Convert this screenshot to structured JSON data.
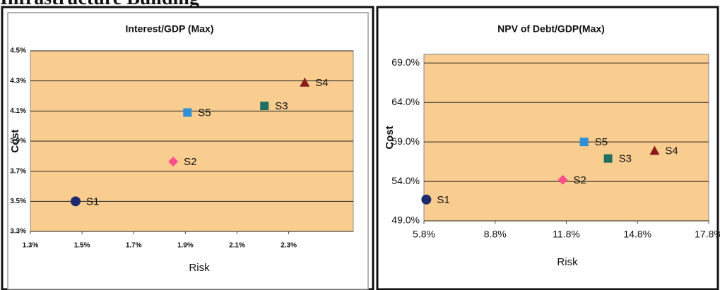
{
  "heading": "Infrastructure Building",
  "chart_data": [
    {
      "type": "scatter",
      "title": "Interest/GDP (Max)",
      "x_label": "Risk",
      "y_label": "Cost",
      "xlim": [
        1.3,
        2.55
      ],
      "ylim": [
        3.3,
        4.5
      ],
      "grid": true,
      "xticks": [
        {
          "value": 1.3,
          "label": "1.3%"
        },
        {
          "value": 1.5,
          "label": "1.5%"
        },
        {
          "value": 1.7,
          "label": "1.7%"
        },
        {
          "value": 1.9,
          "label": "1.9%"
        },
        {
          "value": 2.1,
          "label": "2.1%"
        },
        {
          "value": 2.3,
          "label": "2.3%"
        }
      ],
      "yticks": [
        {
          "value": 3.3,
          "label": "3.3%"
        },
        {
          "value": 3.5,
          "label": "3.5%"
        },
        {
          "value": 3.7,
          "label": "3.7%"
        },
        {
          "value": 3.9,
          "label": "3.9%"
        },
        {
          "value": 4.1,
          "label": "4.1%"
        },
        {
          "value": 4.3,
          "label": "4.3%"
        },
        {
          "value": 4.5,
          "label": "4.5%"
        }
      ],
      "series": [
        {
          "name": "S1",
          "color": "#1f2a6e",
          "marker": "circle",
          "x": [
            1.475
          ],
          "values": [
            3.5
          ]
        },
        {
          "name": "S2",
          "color": "#ff4f8b",
          "marker": "diamond",
          "x": [
            1.853
          ],
          "values": [
            3.764
          ]
        },
        {
          "name": "S5",
          "color": "#2f8fd8",
          "marker": "square",
          "x": [
            1.908
          ],
          "values": [
            4.09
          ]
        },
        {
          "name": "S3",
          "color": "#1f6f62",
          "marker": "square",
          "x": [
            2.206
          ],
          "values": [
            4.134
          ]
        },
        {
          "name": "S4",
          "color": "#8b1a1a",
          "marker": "triangle",
          "x": [
            2.362
          ],
          "values": [
            4.29
          ]
        }
      ]
    },
    {
      "type": "scatter",
      "title": "NPV of Debt/GDP(Max)",
      "x_label": "Risk",
      "y_label": "Cost",
      "xlim": [
        5.8,
        17.8
      ],
      "ylim": [
        49.0,
        70.1
      ],
      "grid": true,
      "xticks": [
        {
          "value": 5.8,
          "label": "5.8%"
        },
        {
          "value": 8.8,
          "label": "8.8%"
        },
        {
          "value": 11.8,
          "label": "11.8%"
        },
        {
          "value": 14.8,
          "label": "14.8%"
        },
        {
          "value": 17.8,
          "label": "17.8%"
        }
      ],
      "yticks": [
        {
          "value": 49.0,
          "label": "49.0%"
        },
        {
          "value": 54.0,
          "label": "54.0%"
        },
        {
          "value": 59.0,
          "label": "59.0%"
        },
        {
          "value": 64.0,
          "label": "64.0%"
        },
        {
          "value": 69.0,
          "label": "69.0%"
        }
      ],
      "series": [
        {
          "name": "S1",
          "color": "#1f2a6e",
          "marker": "circle",
          "x": [
            5.9
          ],
          "values": [
            51.7
          ]
        },
        {
          "name": "S2",
          "color": "#ff4f8b",
          "marker": "diamond",
          "x": [
            11.65
          ],
          "values": [
            54.2
          ]
        },
        {
          "name": "S5",
          "color": "#2f8fd8",
          "marker": "square",
          "x": [
            12.55
          ],
          "values": [
            59.0
          ]
        },
        {
          "name": "S3",
          "color": "#1f6f62",
          "marker": "square",
          "x": [
            13.56
          ],
          "values": [
            56.9
          ]
        },
        {
          "name": "S4",
          "color": "#8b1a1a",
          "marker": "triangle",
          "x": [
            15.52
          ],
          "values": [
            57.9
          ]
        }
      ]
    }
  ]
}
